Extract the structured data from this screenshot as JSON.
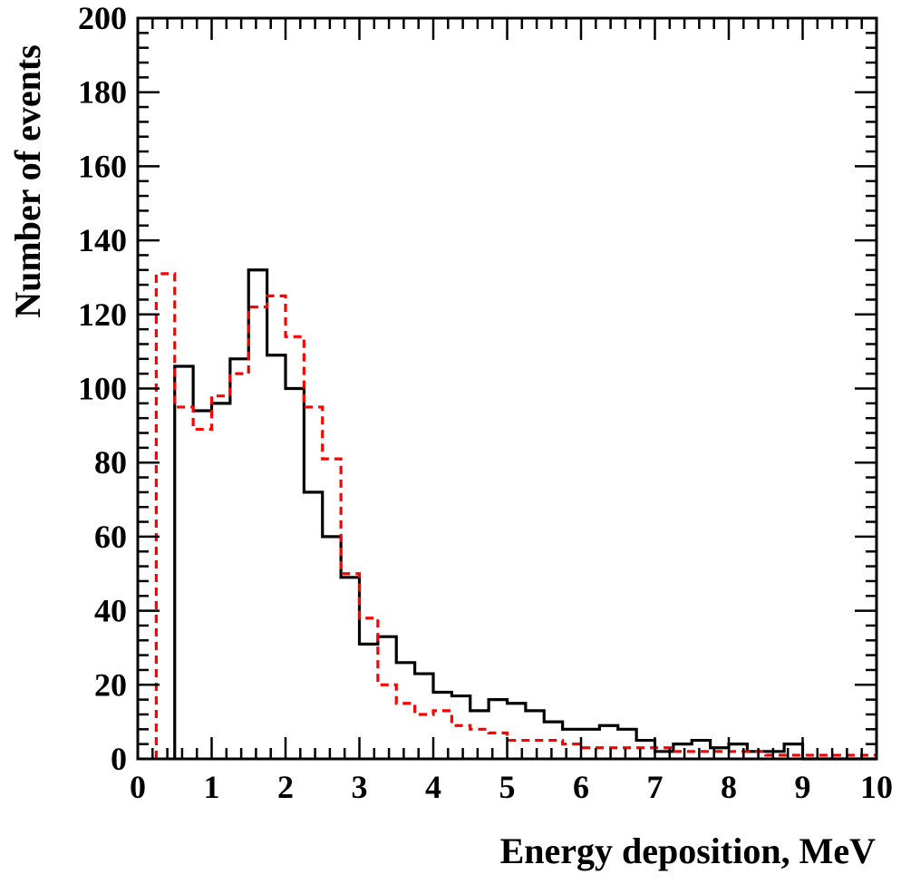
{
  "chart_data": {
    "type": "histogram",
    "title": "",
    "xlabel": "Energy deposition, MeV",
    "ylabel": "Number of events",
    "xlim": [
      0,
      10
    ],
    "ylim": [
      0,
      200
    ],
    "x_ticks": [
      "0",
      "1",
      "2",
      "3",
      "4",
      "5",
      "6",
      "7",
      "8",
      "9",
      "10"
    ],
    "y_ticks": [
      "0",
      "20",
      "40",
      "60",
      "80",
      "100",
      "120",
      "140",
      "160",
      "180",
      "200"
    ],
    "grid": false,
    "legend": "none",
    "bin_edges": [
      0,
      0.25,
      0.5,
      0.75,
      1.0,
      1.25,
      1.5,
      1.75,
      2.0,
      2.25,
      2.5,
      2.75,
      3.0,
      3.25,
      3.5,
      3.75,
      4.0,
      4.25,
      4.5,
      4.75,
      5.0,
      5.25,
      5.5,
      5.75,
      6.0,
      6.25,
      6.5,
      6.75,
      7.0,
      7.25,
      7.5,
      7.75,
      8.0,
      8.25,
      8.5,
      8.75,
      9.0,
      9.25,
      9.5,
      9.75,
      10.0
    ],
    "series": [
      {
        "color": "#000000",
        "style": "solid",
        "values": [
          0,
          0,
          106,
          94,
          96,
          108,
          132,
          109,
          100,
          72,
          60,
          49,
          31,
          33,
          26,
          23,
          18,
          17,
          13,
          16,
          15,
          13,
          10,
          8,
          8,
          9,
          8,
          5,
          2,
          4,
          5,
          3,
          4,
          2,
          2,
          4,
          0,
          0,
          0,
          0
        ]
      },
      {
        "color": "#ff0000",
        "style": "dashed",
        "values": [
          0,
          131,
          95,
          89,
          98,
          104,
          122,
          125,
          114,
          95,
          81,
          50,
          38,
          20,
          15,
          12,
          13,
          9,
          8,
          7,
          5,
          5,
          5,
          4,
          3,
          3,
          3,
          3,
          3,
          2,
          2,
          2,
          2,
          2,
          1,
          1,
          1,
          1,
          1,
          1
        ]
      }
    ]
  }
}
